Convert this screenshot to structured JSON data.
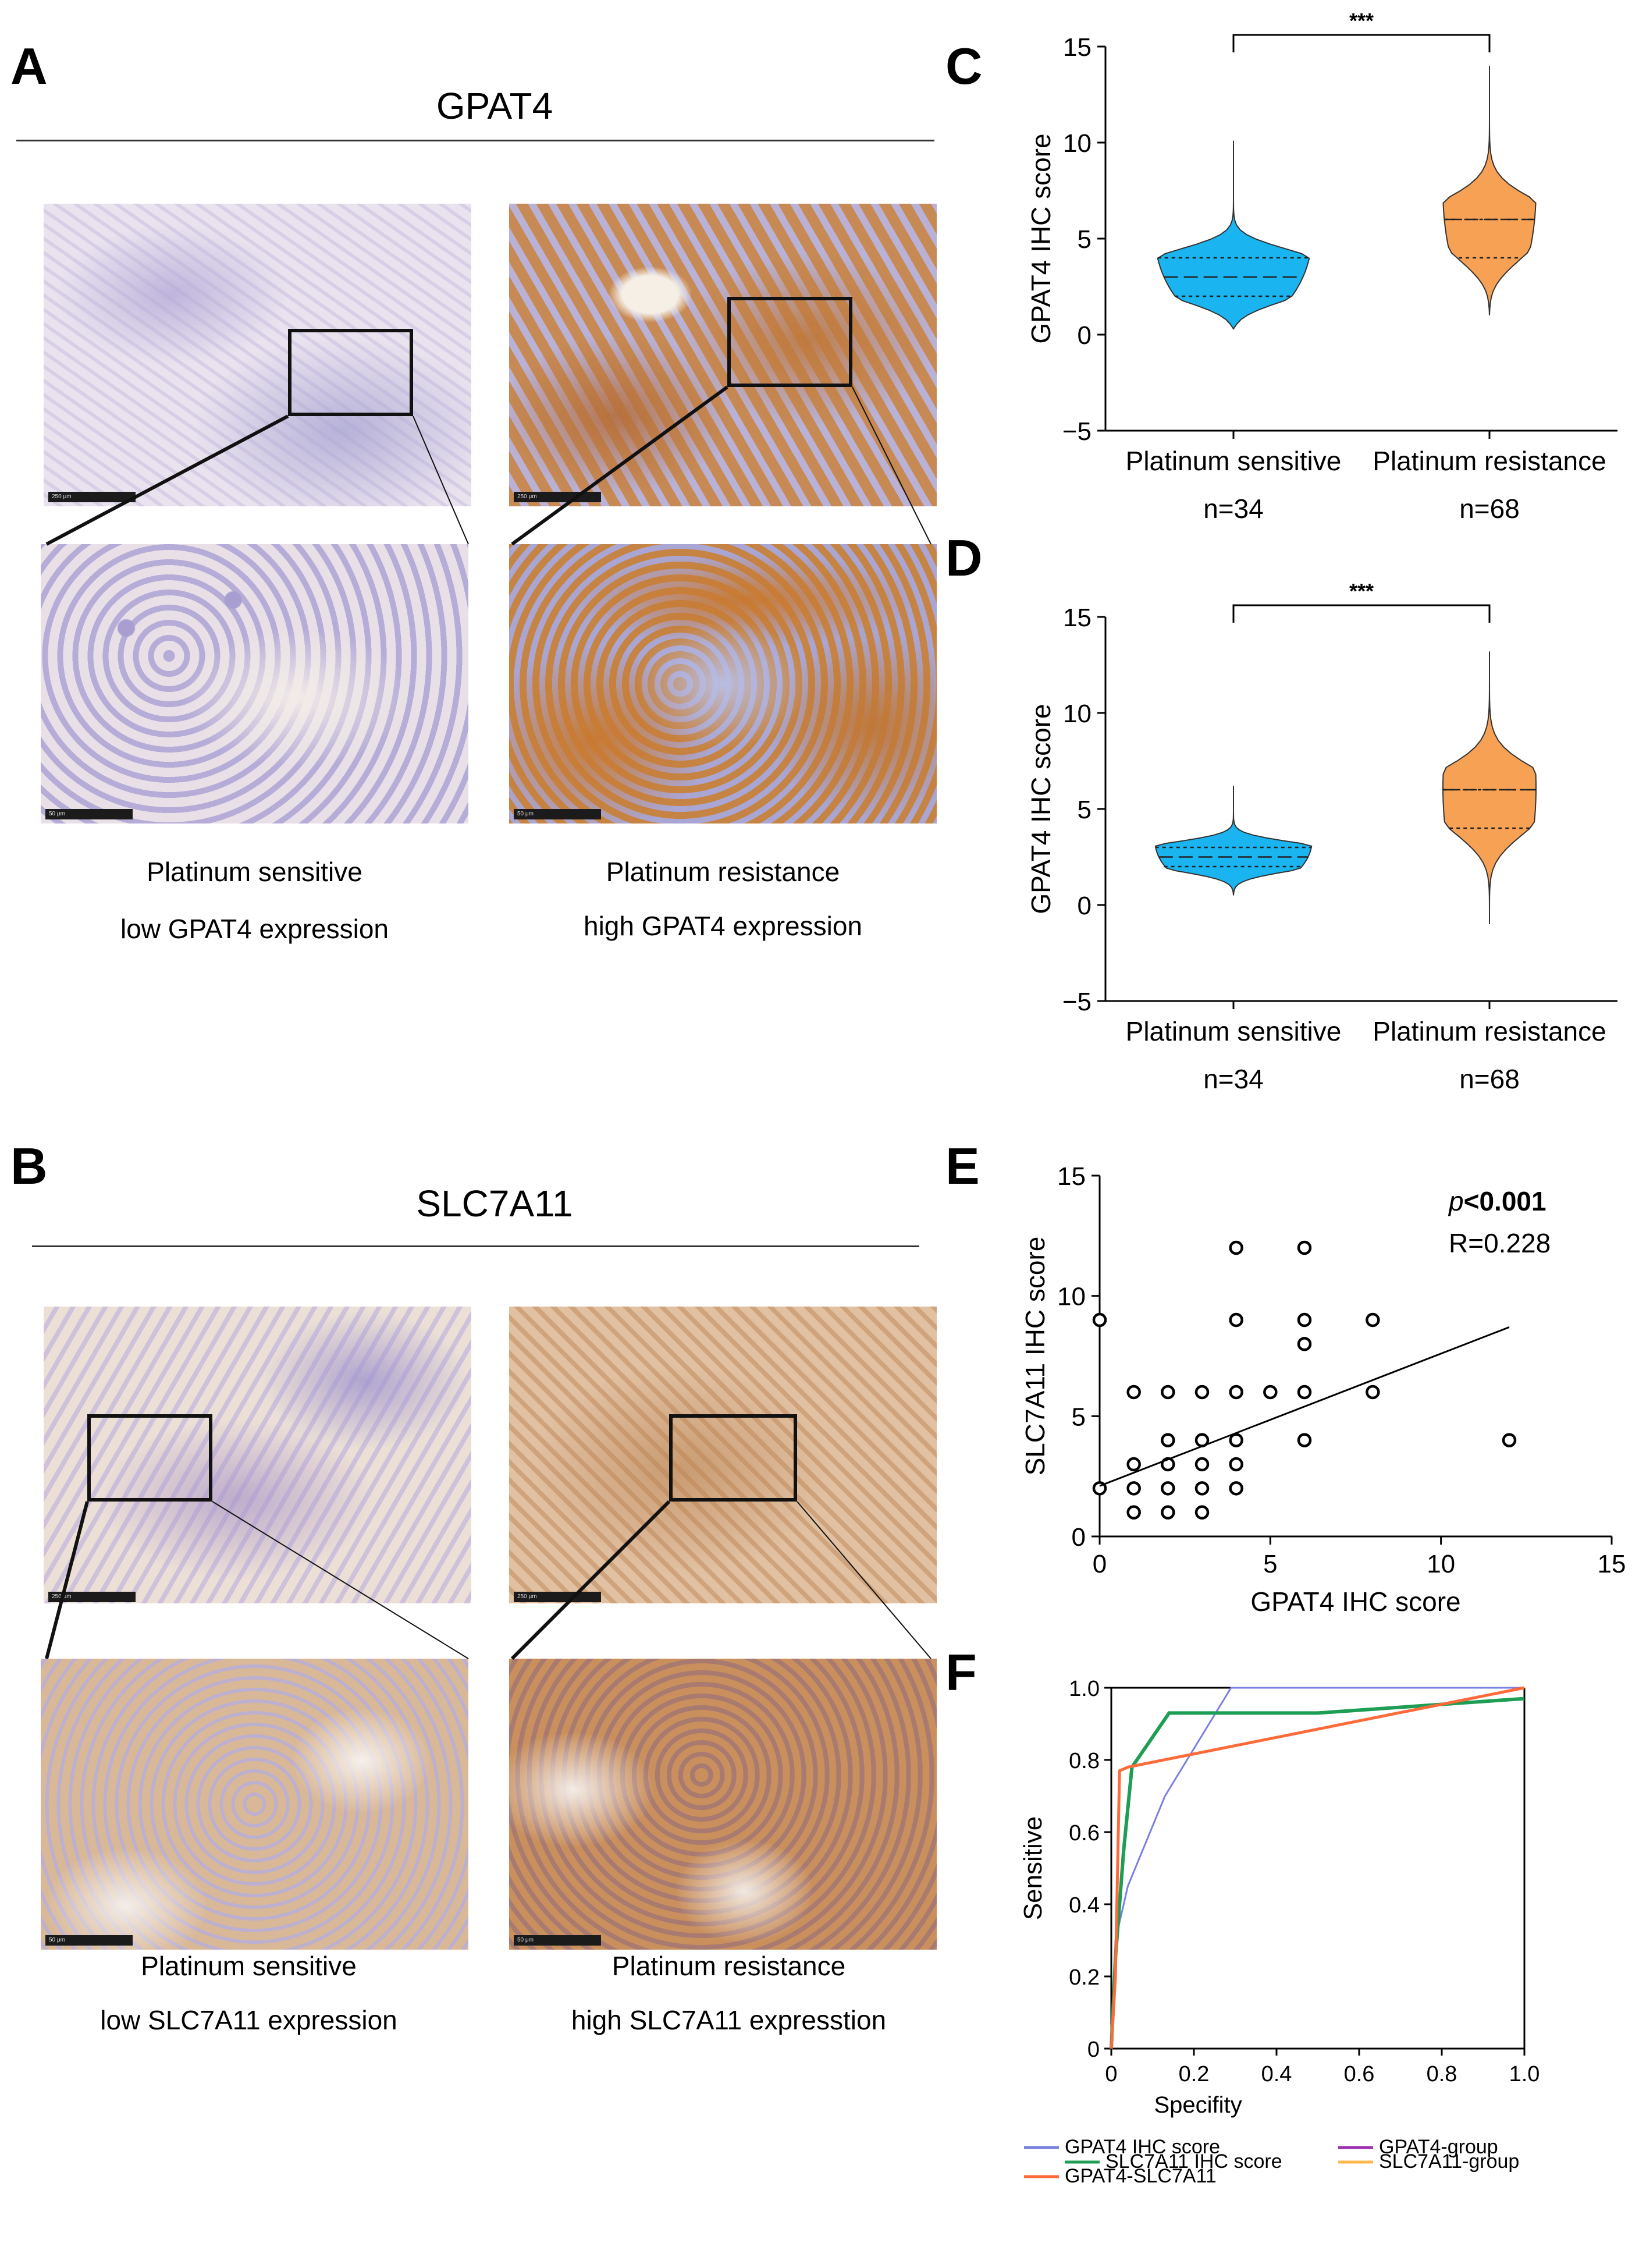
{
  "panels": {
    "A": {
      "letter": "A",
      "title": "GPAT4",
      "left_caption": [
        "Platinum sensitive",
        "low GPAT4 expression"
      ],
      "right_caption": [
        "Platinum resistance",
        "high GPAT4 expression"
      ],
      "scale_low": "250 μm",
      "scale_high": "50 μm"
    },
    "B": {
      "letter": "B",
      "title": "SLC7A11",
      "left_caption": [
        "Platinum sensitive",
        "low SLC7A11 expression"
      ],
      "right_caption": [
        "Platinum resistance",
        "high SLC7A11 expresstion"
      ],
      "scale_low": "250 μm",
      "scale_high": "50 μm"
    },
    "C": {
      "letter": "C"
    },
    "D": {
      "letter": "D"
    },
    "E": {
      "letter": "E"
    },
    "F": {
      "letter": "F"
    }
  },
  "colors": {
    "sensitive_violin": "#1ab4f0",
    "resistance_violin": "#f7a155",
    "stain_blue": "#b7b1d6",
    "stain_brown": "#c4823f",
    "roc_gpat4_score": "#7b80e0",
    "roc_slc7a11_score": "#1e9e55",
    "roc_gpat4_slc7a11": "#ff6a3a",
    "roc_gpat4_group": "#9b2fb0",
    "roc_slc7a11_group": "#ffb84d"
  },
  "chart_data": [
    {
      "id": "C",
      "type": "violin",
      "ylabel": "GPAT4 IHC score",
      "ylim": [
        -5,
        15
      ],
      "yticks": [
        "−5",
        "0",
        "5",
        "10",
        "15"
      ],
      "categories": [
        "Platinum sensitive",
        "Platinum resistance"
      ],
      "group_n": [
        "n=34",
        "n=68"
      ],
      "significance": "***",
      "series": [
        {
          "category": "Platinum sensitive",
          "min": 0.3,
          "max": 10.1,
          "q1": 2.0,
          "median": 3.0,
          "q3": 4.0
        },
        {
          "category": "Platinum resistance",
          "min": 1.0,
          "max": 14.0,
          "q1": 4.0,
          "median": 6.0,
          "q3": 6.0
        }
      ]
    },
    {
      "id": "D",
      "type": "violin",
      "ylabel": "GPAT4 IHC score",
      "ylim": [
        -5,
        15
      ],
      "yticks": [
        "−5",
        "0",
        "5",
        "10",
        "15"
      ],
      "categories": [
        "Platinum sensitive",
        "Platinum resistance"
      ],
      "group_n": [
        "n=34",
        "n=68"
      ],
      "significance": "***",
      "series": [
        {
          "category": "Platinum sensitive",
          "min": 0.5,
          "max": 6.2,
          "q1": 2.0,
          "median": 2.5,
          "q3": 3.0
        },
        {
          "category": "Platinum resistance",
          "min": -1.0,
          "max": 13.2,
          "q1": 4.0,
          "median": 6.0,
          "q3": 6.0
        }
      ]
    },
    {
      "id": "E",
      "type": "scatter",
      "xlabel": "GPAT4 IHC score",
      "ylabel": "SLC7A11 IHC score",
      "xlim": [
        0,
        15
      ],
      "ylim": [
        0,
        15
      ],
      "xticks": [
        "0",
        "5",
        "10",
        "15"
      ],
      "yticks": [
        "0",
        "5",
        "10",
        "15"
      ],
      "annotation_p_italic": "p",
      "annotation_p_rest": "<0.001",
      "annotation_r": "R=0.228",
      "regression": {
        "x": [
          0,
          12
        ],
        "y": [
          2.1,
          8.7
        ]
      },
      "points": [
        [
          0,
          9
        ],
        [
          0,
          2
        ],
        [
          1,
          1
        ],
        [
          1,
          2
        ],
        [
          1,
          3
        ],
        [
          1,
          6
        ],
        [
          2,
          1
        ],
        [
          2,
          2
        ],
        [
          2,
          3
        ],
        [
          2,
          4
        ],
        [
          2,
          6
        ],
        [
          3,
          1
        ],
        [
          3,
          2
        ],
        [
          3,
          3
        ],
        [
          3,
          4
        ],
        [
          3,
          6
        ],
        [
          4,
          2
        ],
        [
          4,
          3
        ],
        [
          4,
          4
        ],
        [
          4,
          6
        ],
        [
          4,
          9
        ],
        [
          4,
          12
        ],
        [
          5,
          6
        ],
        [
          6,
          4
        ],
        [
          6,
          6
        ],
        [
          6,
          8
        ],
        [
          6,
          9
        ],
        [
          6,
          12
        ],
        [
          8,
          6
        ],
        [
          8,
          9
        ],
        [
          12,
          4
        ]
      ]
    },
    {
      "id": "F",
      "type": "line",
      "xlabel": "Specifity",
      "ylabel": "Sensitive",
      "xlim": [
        0,
        1
      ],
      "ylim": [
        0,
        1
      ],
      "xticks": [
        "0",
        "0.2",
        "0.4",
        "0.6",
        "0.8",
        "1.0"
      ],
      "yticks": [
        "0",
        "0.2",
        "0.4",
        "0.6",
        "0.8",
        "1.0"
      ],
      "series": [
        {
          "name": "GPAT4 IHC score",
          "color": "#7b80e0",
          "x": [
            0,
            0.01,
            0.04,
            0.13,
            0.29,
            1.0
          ],
          "y": [
            0,
            0.3,
            0.45,
            0.7,
            1.0,
            1.0
          ]
        },
        {
          "name": "SLC7A11 IHC score",
          "color": "#1e9e55",
          "x": [
            0,
            0.01,
            0.03,
            0.05,
            0.14,
            0.5,
            1.0
          ],
          "y": [
            0,
            0.25,
            0.55,
            0.78,
            0.93,
            0.93,
            0.97
          ]
        },
        {
          "name": "GPAT4-SLC7A11",
          "color": "#ff6a3a",
          "x": [
            0,
            0.01,
            0.02,
            0.04,
            1.0
          ],
          "y": [
            0,
            0.2,
            0.77,
            0.78,
            1.0
          ]
        },
        {
          "name": "GPAT4-group",
          "color": "#9b2fb0",
          "x": [],
          "y": []
        },
        {
          "name": "SLC7A11-group",
          "color": "#ffb84d",
          "x": [],
          "y": []
        }
      ],
      "legend": [
        "GPAT4 IHC score",
        "SLC7A11 IHC score",
        "GPAT4-SLC7A11",
        "GPAT4-group",
        "SLC7A11-group"
      ]
    }
  ]
}
